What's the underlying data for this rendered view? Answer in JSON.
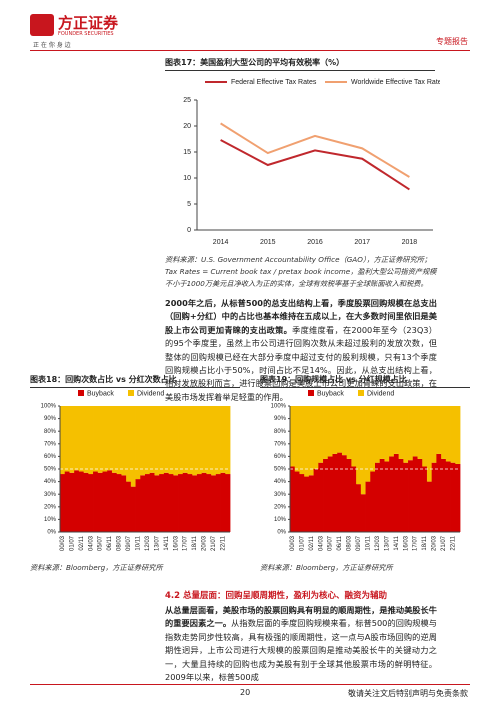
{
  "header": {
    "logo": "方正证券",
    "logo_sub": "FOUNDER SECURITIES",
    "slogan": "正 在 你 身 边",
    "report_type": "专题报告"
  },
  "chart_data": [
    {
      "type": "line",
      "title": "图表17：美国盈利大型公司的平均有效税率（%）",
      "categories": [
        "2014",
        "2015",
        "2016",
        "2017",
        "2018"
      ],
      "series": [
        {
          "name": "Federal Effective Tax Rates",
          "color": "#c0282d",
          "values": [
            17.3,
            12.5,
            15.3,
            13.7,
            7.8
          ]
        },
        {
          "name": "Worldwide Effective Tax Rates",
          "color": "#f0a070",
          "values": [
            20.5,
            14.8,
            18.1,
            15.7,
            10.2
          ]
        }
      ],
      "ylim": [
        0,
        25
      ],
      "yticks": [
        0,
        5,
        10,
        15,
        20,
        25
      ],
      "source": "资料来源：U.S. Government Accountability Office（GAO），方正证券研究所；",
      "note": "Tax Rates = Current book tax / pretax book income，盈利大型公司指资产规模不小于1000万美元且净收入为正的实体，全球有效税率基于全球账面收入和税费。"
    },
    {
      "type": "area",
      "title": "图表18：回购次数占比 vs 分红次数占比",
      "categories": [
        "00/03",
        null,
        "01/07",
        null,
        "02/11",
        null,
        "04/03",
        null,
        "05/07",
        null,
        "06/11",
        null,
        "08/03",
        null,
        "09/07",
        null,
        "10/11",
        null,
        "12/03",
        null,
        "13/07",
        null,
        "14/11",
        null,
        "16/03",
        null,
        "17/07",
        null,
        "18/11",
        null,
        "20/03",
        null,
        "21/07",
        null,
        "22/11",
        null
      ],
      "series": [
        {
          "name": "Buyback",
          "color": "#d40000",
          "values": [
            46,
            48,
            47,
            49,
            48,
            47,
            46,
            48,
            47,
            48,
            49,
            47,
            46,
            45,
            40,
            36,
            42,
            45,
            46,
            47,
            45,
            46,
            47,
            46,
            45,
            46,
            47,
            46,
            45,
            46,
            47,
            46,
            45,
            46,
            47,
            46
          ]
        },
        {
          "name": "Dividend",
          "color": "#f5c000",
          "values": [
            54,
            52,
            53,
            51,
            52,
            53,
            54,
            52,
            53,
            52,
            51,
            53,
            54,
            55,
            60,
            64,
            58,
            55,
            54,
            53,
            55,
            54,
            53,
            54,
            55,
            54,
            53,
            54,
            55,
            54,
            53,
            54,
            55,
            54,
            53,
            54
          ]
        }
      ],
      "ylim": [
        0,
        100
      ],
      "yticks": [
        {
          "value": 0,
          "label": "0%"
        },
        {
          "value": 10,
          "label": "10%"
        },
        {
          "value": 20,
          "label": "20%"
        },
        {
          "value": 30,
          "label": "30%"
        },
        {
          "value": 40,
          "label": "40%"
        },
        {
          "value": 50,
          "label": "50%"
        },
        {
          "value": 60,
          "label": "60%"
        },
        {
          "value": 70,
          "label": "70%"
        },
        {
          "value": 80,
          "label": "80%"
        },
        {
          "value": 90,
          "label": "90%"
        },
        {
          "value": 100,
          "label": "100%"
        }
      ],
      "hline": 50,
      "source": "资料来源：Bloomberg，方正证券研究所"
    },
    {
      "type": "area",
      "title": "图表19：回购规模占比 vs 分红规模占比",
      "categories": [
        "00/03",
        null,
        "01/07",
        null,
        "02/11",
        null,
        "04/03",
        null,
        "05/07",
        null,
        "06/11",
        null,
        "08/03",
        null,
        "09/07",
        null,
        "10/11",
        null,
        "12/03",
        null,
        "13/07",
        null,
        "14/11",
        null,
        "16/03",
        null,
        "17/07",
        null,
        "18/11",
        null,
        "20/03",
        null,
        "21/07",
        null,
        "22/11",
        null
      ],
      "series": [
        {
          "name": "Buyback",
          "color": "#d40000",
          "values": [
            52,
            48,
            46,
            44,
            45,
            50,
            55,
            58,
            60,
            62,
            63,
            61,
            58,
            52,
            38,
            30,
            40,
            48,
            55,
            58,
            56,
            60,
            62,
            58,
            55,
            57,
            60,
            58,
            52,
            40,
            55,
            62,
            58,
            56,
            55,
            54
          ]
        },
        {
          "name": "Dividend",
          "color": "#f5c000",
          "values": [
            48,
            52,
            54,
            56,
            55,
            50,
            45,
            42,
            40,
            38,
            37,
            39,
            42,
            48,
            62,
            70,
            60,
            52,
            45,
            42,
            44,
            40,
            38,
            42,
            45,
            43,
            40,
            42,
            48,
            60,
            45,
            38,
            42,
            44,
            45,
            46
          ]
        }
      ],
      "ylim": [
        0,
        100
      ],
      "yticks": [
        {
          "value": 0,
          "label": "0%"
        },
        {
          "value": 10,
          "label": "10%"
        },
        {
          "value": 20,
          "label": "20%"
        },
        {
          "value": 30,
          "label": "30%"
        },
        {
          "value": 40,
          "label": "40%"
        },
        {
          "value": 50,
          "label": "50%"
        },
        {
          "value": 60,
          "label": "60%"
        },
        {
          "value": 70,
          "label": "70%"
        },
        {
          "value": 80,
          "label": "80%"
        },
        {
          "value": 90,
          "label": "90%"
        },
        {
          "value": 100,
          "label": "100%"
        }
      ],
      "hline": 50,
      "source": "资料来源：Bloomberg，方正证券研究所"
    }
  ],
  "paragraphs": [
    {
      "bold": "2000年之后，从标普500的总支出结构上看，季度股票回购规模在总支出（回购+分红）中的占比也基本维持在五成以上，在大多数时间里依旧是美股上市公司更加青睐的支出政策。",
      "text": "季度维度看，在2000年至今（23Q3）的95个季度里，虽然上市公司进行回购次数从未超过股利的发放次数，但整体的回购规模已经在大部分季度中超过支付的股利规模，只有13个季度回购规模占比小于50%，时间占比不足14%。因此，从总支出结构上看，相对发放股利而言，进行股票回购是美股上市公司更加青睐的支出政策，在美股市场发挥着举足轻重的作用。"
    },
    {
      "bold": "从总量层面看，美股市场的股票回购具有明显的顺周期性，是推动美股长牛的重要因素之一。",
      "text": "从指数层面的季度回购规模来看，标普500的回购规模与指数走势同步性较高，具有极强的顺周期性，这一点与A股市场回购的逆周期性迥异，上市公司进行大规模的股票回购是推动美股长牛的关键动力之一，大量且持续的回购也成为美股有别于全球其他股票市场的鲜明特征。2009年以来，标普500成"
    }
  ],
  "section": "4.2 总量层面：回购呈顺周期性，盈利为核心、融资为辅助",
  "footer": {
    "page": "20",
    "disclaimer": "敬请关注文后特别声明与免责条款"
  }
}
